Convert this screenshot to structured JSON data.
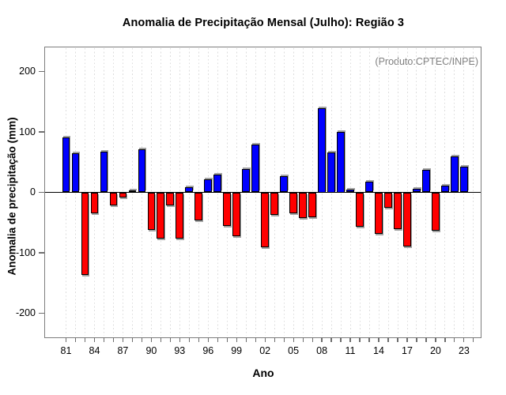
{
  "chart_data": {
    "type": "bar",
    "title": "Anomalia de Precipitação Mensal (Julho): Região 3",
    "xlabel": "Ano",
    "ylabel": "Anomalia de precipitação (mm)",
    "annotation": "(Produto:CPTEC/INPE)",
    "categories": [
      "81",
      "82",
      "83",
      "84",
      "85",
      "86",
      "87",
      "88",
      "89",
      "90",
      "91",
      "92",
      "93",
      "94",
      "95",
      "96",
      "97",
      "98",
      "99",
      "00",
      "01",
      "02",
      "03",
      "04",
      "05",
      "06",
      "07",
      "08",
      "09",
      "10",
      "11",
      "12",
      "13",
      "14",
      "15",
      "16",
      "17",
      "18",
      "19",
      "20",
      "21",
      "22",
      "23",
      "24"
    ],
    "values": [
      91,
      65,
      -136,
      -34,
      67,
      -22,
      -9,
      3,
      71,
      -62,
      -77,
      -22,
      -76,
      8,
      -46,
      22,
      29,
      -56,
      -73,
      38,
      79,
      -91,
      -37,
      27,
      -34,
      -42,
      -41,
      140,
      66,
      100,
      4,
      -57,
      18,
      -68,
      -25,
      -61,
      -89,
      6,
      37,
      -64,
      11,
      60,
      42,
      null
    ],
    "x_label_every": 3,
    "y_tick_labels": [
      "200",
      "100",
      "0",
      "-100",
      "-200"
    ],
    "y_tick_values": [
      200,
      100,
      0,
      -100,
      -200
    ],
    "ylim": [
      -240,
      240
    ],
    "grid": "vertical-dotted-per-year",
    "legend": "none",
    "positive_color": "#0000ff",
    "negative_color": "#ff0000",
    "bar_border_color": "#000000",
    "annotation_color": "#808080"
  }
}
